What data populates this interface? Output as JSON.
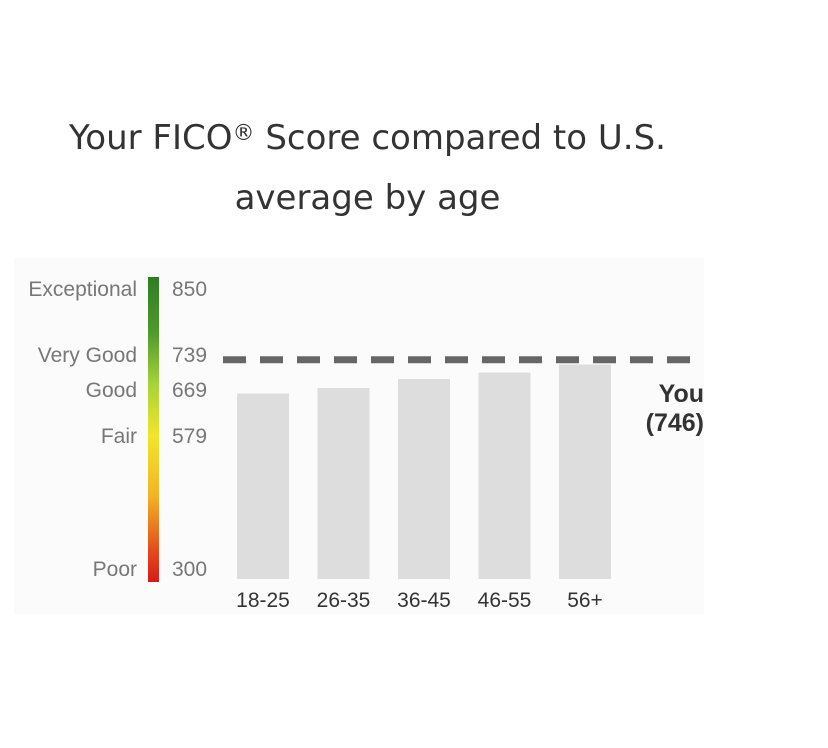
{
  "title": {
    "line1_prefix": "Your FICO",
    "line1_sup": "®",
    "line1_suffix": " Score compared to U.S.",
    "line2": "average by age"
  },
  "scale": {
    "ratings": [
      {
        "label": "Exceptional",
        "score": "850"
      },
      {
        "label": "Very Good",
        "score": "739"
      },
      {
        "label": "Good",
        "score": "669"
      },
      {
        "label": "Fair",
        "score": "579"
      },
      {
        "label": "Poor",
        "score": "300"
      }
    ]
  },
  "chart_data": {
    "type": "bar",
    "title": "Your FICO® Score compared to U.S. average by age",
    "categories": [
      "18-25",
      "26-35",
      "36-45",
      "46-55",
      "56+"
    ],
    "values": [
      680,
      691,
      709,
      722,
      738
    ],
    "ylim": [
      300,
      850
    ],
    "bar_color": "#dddddd",
    "reference_line": {
      "value": 746,
      "label": "You",
      "value_label": "(746)",
      "color": "#666666",
      "style": "dashed"
    },
    "grid": false
  }
}
